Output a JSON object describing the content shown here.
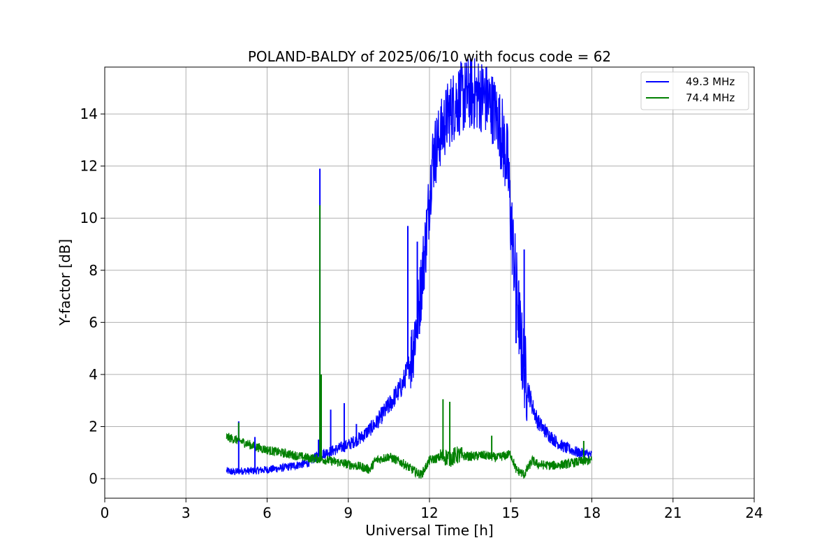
{
  "chart_data": {
    "type": "line",
    "title": "POLAND-BALDY of 2025/06/10 with focus code = 62",
    "xlabel": "Universal Time [h]",
    "ylabel": "Y-factor [dB]",
    "xlim": [
      0,
      24
    ],
    "ylim": [
      -0.75,
      15.8
    ],
    "xticks": [
      0,
      3,
      6,
      9,
      12,
      15,
      18,
      21,
      24
    ],
    "yticks": [
      0,
      2,
      4,
      6,
      8,
      10,
      12,
      14
    ],
    "xtick_labels": [
      "0",
      "3",
      "6",
      "9",
      "12",
      "15",
      "18",
      "21",
      "24"
    ],
    "ytick_labels": [
      "0",
      "2",
      "4",
      "6",
      "8",
      "10",
      "12",
      "14"
    ],
    "grid": true,
    "legend_position": "top-right",
    "series": [
      {
        "name": "49.3 MHz",
        "color": "#0000ff",
        "x": [
          4.5,
          4.8,
          5.0,
          5.5,
          6.0,
          6.5,
          7.0,
          7.5,
          7.9,
          8.2,
          8.5,
          9.0,
          9.5,
          10.0,
          10.5,
          11.0,
          11.3,
          11.6,
          11.9,
          12.1,
          12.4,
          12.7,
          13.0,
          13.5,
          14.0,
          14.3,
          14.6,
          14.9,
          15.0,
          15.2,
          15.4,
          15.6,
          15.8,
          16.0,
          16.3,
          16.7,
          17.0,
          17.5,
          18.0
        ],
        "y": [
          0.3,
          0.25,
          0.3,
          0.3,
          0.35,
          0.4,
          0.5,
          0.6,
          0.9,
          1.0,
          1.1,
          1.3,
          1.6,
          2.1,
          2.8,
          3.6,
          4.5,
          6.5,
          9.5,
          12.2,
          13.2,
          14.0,
          14.5,
          14.8,
          14.7,
          14.3,
          13.6,
          12.0,
          10.0,
          7.5,
          5.0,
          3.6,
          2.8,
          2.2,
          1.8,
          1.4,
          1.2,
          1.0,
          0.9
        ]
      },
      {
        "name": "74.4 MHz",
        "color": "#008000",
        "x": [
          4.5,
          5.0,
          5.5,
          6.0,
          6.5,
          7.0,
          7.5,
          8.0,
          8.5,
          9.0,
          9.5,
          9.8,
          10.0,
          10.5,
          11.0,
          11.5,
          11.7,
          12.0,
          12.5,
          12.8,
          13.0,
          13.5,
          14.0,
          14.5,
          15.0,
          15.2,
          15.5,
          15.8,
          16.0,
          16.5,
          17.0,
          17.5,
          18.0
        ],
        "y": [
          1.6,
          1.45,
          1.25,
          1.1,
          1.0,
          0.9,
          0.8,
          0.75,
          0.65,
          0.55,
          0.45,
          0.35,
          0.7,
          0.85,
          0.6,
          0.25,
          0.15,
          0.7,
          0.85,
          0.8,
          0.9,
          0.85,
          0.9,
          0.8,
          0.95,
          0.35,
          0.15,
          0.7,
          0.55,
          0.5,
          0.55,
          0.65,
          0.7
        ]
      }
    ],
    "spikes": [
      {
        "series": 0,
        "x": 4.95,
        "y": 2.2
      },
      {
        "series": 0,
        "x": 5.55,
        "y": 1.6
      },
      {
        "series": 0,
        "x": 7.9,
        "y": 1.5
      },
      {
        "series": 0,
        "x": 7.95,
        "y": 11.9
      },
      {
        "series": 0,
        "x": 8.35,
        "y": 2.65
      },
      {
        "series": 0,
        "x": 8.85,
        "y": 2.9
      },
      {
        "series": 0,
        "x": 9.3,
        "y": 2.1
      },
      {
        "series": 0,
        "x": 10.6,
        "y": 2.7
      },
      {
        "series": 0,
        "x": 11.2,
        "y": 9.7
      },
      {
        "series": 0,
        "x": 11.55,
        "y": 9.1
      },
      {
        "series": 0,
        "x": 12.35,
        "y": 12.6
      },
      {
        "series": 0,
        "x": 15.2,
        "y": 5.2
      },
      {
        "series": 0,
        "x": 15.5,
        "y": 8.8
      },
      {
        "series": 1,
        "x": 4.95,
        "y": 2.15
      },
      {
        "series": 1,
        "x": 7.95,
        "y": 10.5
      },
      {
        "series": 1,
        "x": 8.0,
        "y": 4.0
      },
      {
        "series": 1,
        "x": 12.5,
        "y": 3.05
      },
      {
        "series": 1,
        "x": 12.75,
        "y": 2.95
      },
      {
        "series": 1,
        "x": 14.3,
        "y": 1.65
      },
      {
        "series": 1,
        "x": 17.7,
        "y": 1.45
      }
    ]
  }
}
